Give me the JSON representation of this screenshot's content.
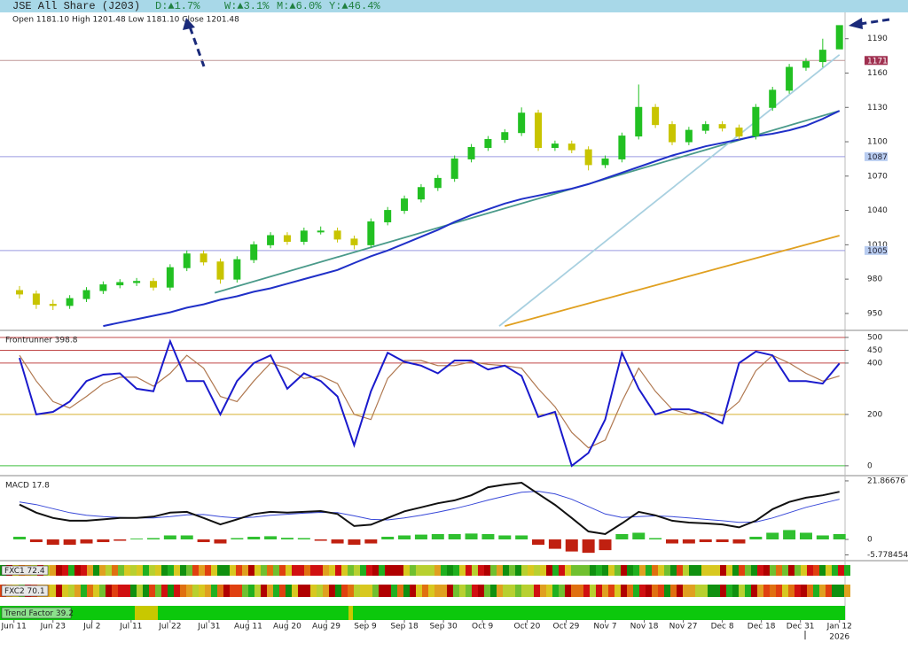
{
  "header": {
    "title": "JSE All Share (J203)",
    "changes": [
      "D:▲1.7%",
      "W:▲3.1%",
      "M:▲6.0%",
      "Y:▲46.4%"
    ]
  },
  "strips": [
    {
      "label": "FXC1 72.4"
    },
    {
      "label": "FXC2 70.1"
    },
    {
      "label": "Trend Factor 39.2"
    }
  ],
  "chart_data": [
    {
      "type": "candlestick",
      "subtitle": "Open 1181.10 High 1201.48 Low 1181.10 Close 1201.48",
      "x": [
        1,
        4,
        7,
        10,
        13,
        16,
        19,
        22,
        25,
        28,
        31,
        34,
        37,
        40,
        43,
        46,
        49,
        52,
        55,
        58,
        61,
        64,
        67,
        70,
        73,
        76,
        79,
        82,
        85,
        88,
        91,
        94,
        97,
        100,
        103,
        106,
        109,
        112,
        115,
        118,
        121,
        124,
        127,
        130,
        133,
        136,
        139,
        142,
        145,
        148
      ],
      "open": [
        970,
        967,
        958,
        957,
        963,
        970,
        975,
        977,
        978,
        973,
        990,
        1002,
        995,
        980,
        997,
        1010,
        1018,
        1013,
        1022,
        1022,
        1015,
        1010,
        1030,
        1040,
        1050,
        1060,
        1068,
        1085,
        1095,
        1102,
        1108,
        1125,
        1095,
        1098,
        1093,
        1080,
        1085,
        1105,
        1130,
        1115,
        1100,
        1110,
        1115,
        1112,
        1105,
        1130,
        1145,
        1165,
        1170,
        1181.1
      ],
      "high": [
        974,
        970,
        962,
        966,
        973,
        978,
        980,
        981,
        981,
        993,
        1005,
        1005,
        998,
        1000,
        1013,
        1021,
        1021,
        1025,
        1026,
        1025,
        1018,
        1033,
        1043,
        1053,
        1063,
        1071,
        1088,
        1098,
        1105,
        1111,
        1130,
        1128,
        1101,
        1101,
        1096,
        1088,
        1108,
        1150,
        1133,
        1118,
        1113,
        1118,
        1118,
        1115,
        1133,
        1148,
        1168,
        1173,
        1190,
        1201.48
      ],
      "low": [
        963,
        954,
        953,
        954,
        960,
        967,
        972,
        974,
        970,
        970,
        987,
        992,
        976,
        977,
        994,
        1007,
        1010,
        1010,
        1019,
        1012,
        1006,
        1007,
        1027,
        1037,
        1047,
        1057,
        1065,
        1082,
        1092,
        1099,
        1105,
        1092,
        1092,
        1090,
        1075,
        1077,
        1082,
        1102,
        1112,
        1097,
        1097,
        1107,
        1109,
        1102,
        1102,
        1127,
        1142,
        1162,
        1165,
        1181.1
      ],
      "close": [
        967,
        958,
        957,
        963,
        970,
        975,
        977,
        978,
        973,
        990,
        1002,
        995,
        980,
        997,
        1010,
        1018,
        1013,
        1022,
        1022,
        1015,
        1010,
        1030,
        1040,
        1050,
        1060,
        1068,
        1085,
        1095,
        1102,
        1108,
        1125,
        1095,
        1098,
        1093,
        1080,
        1085,
        1105,
        1130,
        1115,
        1100,
        1110,
        1115,
        1112,
        1105,
        1130,
        1145,
        1165,
        1170,
        1180,
        1201.48
      ],
      "up_color": "#22c022",
      "down_color": "#c8c400",
      "lines": [
        {
          "color": "#2030c8",
          "values": [
            null,
            null,
            null,
            null,
            null,
            939,
            942,
            945,
            948,
            951,
            955,
            958,
            962,
            965,
            969,
            972,
            976,
            980,
            984,
            988,
            994,
            1000,
            1005,
            1011,
            1017,
            1023,
            1030,
            1036,
            1041,
            1046,
            1050,
            1053,
            1056,
            1059,
            1063,
            1068,
            1073,
            1078,
            1083,
            1088,
            1092,
            1096,
            1099,
            1102,
            1105,
            1107,
            1110,
            1114,
            1120,
            1127
          ]
        }
      ],
      "trendlines": [
        {
          "x": [
            36,
            148
          ],
          "y": [
            968,
            1127
          ],
          "color": "#4a9a8a"
        },
        {
          "x": [
            87,
            148
          ],
          "y": [
            939,
            1176
          ],
          "color": "#a8d0e0"
        },
        {
          "x": [
            88,
            148
          ],
          "y": [
            939,
            1018
          ],
          "color": "#e0a020"
        }
      ],
      "hlines": [
        {
          "value": 1171,
          "color": "#c09898",
          "label_color": "#a03050"
        },
        {
          "value": 1087,
          "color": "#9a9ae0",
          "label_color": "#b8ccf0"
        },
        {
          "value": 1005,
          "color": "#9a9ae0",
          "label_color": "#b8ccf0"
        }
      ],
      "xlim": [
        -2.5,
        149
      ],
      "ylim": [
        936,
        1213
      ],
      "yticks": [
        1190,
        1160,
        1130,
        1100,
        1070,
        1040,
        1010,
        980,
        950
      ],
      "xticks": [
        {
          "value": 0,
          "label": "Jun 11"
        },
        {
          "value": 7,
          "label": "Jun 23"
        },
        {
          "value": 14,
          "label": "Jul 2"
        },
        {
          "value": 21,
          "label": "Jul 11"
        },
        {
          "value": 28,
          "label": "Jul 22"
        },
        {
          "value": 35,
          "label": "Jul 31"
        },
        {
          "value": 42,
          "label": "Aug 11"
        },
        {
          "value": 49,
          "label": "Aug 20"
        },
        {
          "value": 56,
          "label": "Aug 29"
        },
        {
          "value": 63,
          "label": "Sep 9"
        },
        {
          "value": 70,
          "label": "Sep 18"
        },
        {
          "value": 77,
          "label": "Sep 30"
        },
        {
          "value": 84,
          "label": "Oct 9"
        },
        {
          "value": 92,
          "label": "Oct 20"
        },
        {
          "value": 99,
          "label": "Oct 29"
        },
        {
          "value": 106,
          "label": "Nov 7"
        },
        {
          "value": 113,
          "label": "Nov 18"
        },
        {
          "value": 120,
          "label": "Nov 27"
        },
        {
          "value": 127,
          "label": "Dec 8"
        },
        {
          "value": 134,
          "label": "Dec 18"
        },
        {
          "value": 141,
          "label": "Dec 31"
        },
        {
          "value": 148,
          "label": "Jan 12"
        }
      ],
      "year_label": "2026"
    },
    {
      "type": "line",
      "title": "Frontrunner 398.8",
      "ylim": [
        -35,
        524
      ],
      "yticks": [
        500,
        450,
        400,
        200,
        0
      ],
      "tick_colors": [
        "#c04848",
        "#c04848",
        "#c04848",
        "#d8b030",
        "#40c040"
      ],
      "series": [
        {
          "color": "#1a1acc",
          "values": [
            420,
            200,
            210,
            250,
            330,
            355,
            360,
            300,
            290,
            485,
            330,
            330,
            200,
            330,
            400,
            430,
            300,
            360,
            330,
            270,
            80,
            290,
            440,
            405,
            390,
            360,
            410,
            410,
            375,
            390,
            350,
            190,
            210,
            0,
            50,
            180,
            440,
            300,
            200,
            220,
            220,
            200,
            165,
            400,
            445,
            430,
            330,
            330,
            320,
            398.8
          ]
        },
        {
          "color": "#b07850",
          "values": [
            430,
            330,
            250,
            225,
            270,
            320,
            345,
            345,
            310,
            360,
            430,
            380,
            270,
            250,
            330,
            400,
            380,
            340,
            350,
            320,
            200,
            180,
            340,
            410,
            410,
            390,
            390,
            405,
            395,
            390,
            380,
            300,
            230,
            130,
            70,
            100,
            250,
            380,
            290,
            220,
            200,
            210,
            195,
            250,
            370,
            430,
            400,
            360,
            330,
            350
          ]
        }
      ]
    },
    {
      "type": "macd",
      "title": "MACD 17.8",
      "ylim": [
        -7.6,
        23.5
      ],
      "yticks": [
        21.86676,
        0,
        -5.778454
      ],
      "series": [
        {
          "color": "#111111",
          "values": [
            13,
            10,
            8,
            7,
            7,
            7.5,
            8,
            8,
            8.5,
            10,
            10.3,
            8,
            5.6,
            7.5,
            9.5,
            10.3,
            10,
            10.3,
            10.6,
            9.5,
            5,
            5.5,
            8,
            10.5,
            12,
            13.5,
            14.6,
            16.5,
            19.5,
            20.5,
            21.2,
            17,
            12.9,
            8,
            3,
            2,
            6,
            10.3,
            9,
            7,
            6.3,
            6,
            5.6,
            4.5,
            7,
            11.3,
            14,
            15.6,
            16.5,
            17.8
          ]
        },
        {
          "color": "#3848d8",
          "values": [
            14,
            13,
            11.5,
            10,
            9,
            8.5,
            8.2,
            8,
            8,
            8.5,
            9.2,
            9.3,
            8.5,
            8,
            8.3,
            9,
            9.4,
            9.8,
            10.1,
            10,
            8.8,
            7.5,
            7.3,
            8,
            9,
            10.2,
            11.5,
            13,
            14.7,
            16.2,
            17.6,
            18,
            17,
            15,
            12.3,
            9.5,
            8.2,
            8.5,
            8.8,
            8.5,
            8,
            7.5,
            7,
            6.4,
            6.5,
            8,
            10,
            12,
            13.5,
            15
          ]
        }
      ],
      "histogram": {
        "up_color": "#30c030",
        "down_color": "#c02010",
        "values": [
          1,
          -1,
          -2,
          -2,
          -1.5,
          -1,
          -0.5,
          0.3,
          0.5,
          1.5,
          1.5,
          -1,
          -1.5,
          0.5,
          1,
          1.2,
          0.6,
          0.5,
          -0.5,
          -1.5,
          -2,
          -1.5,
          1,
          1.5,
          1.8,
          2,
          2,
          2.2,
          2,
          1.5,
          1.5,
          -2,
          -3.5,
          -4.5,
          -5,
          -4,
          2,
          2.5,
          0.5,
          -1.5,
          -1.5,
          -1,
          -1,
          -1.5,
          1,
          2.5,
          3.5,
          2.5,
          1.5,
          2
        ]
      }
    }
  ]
}
